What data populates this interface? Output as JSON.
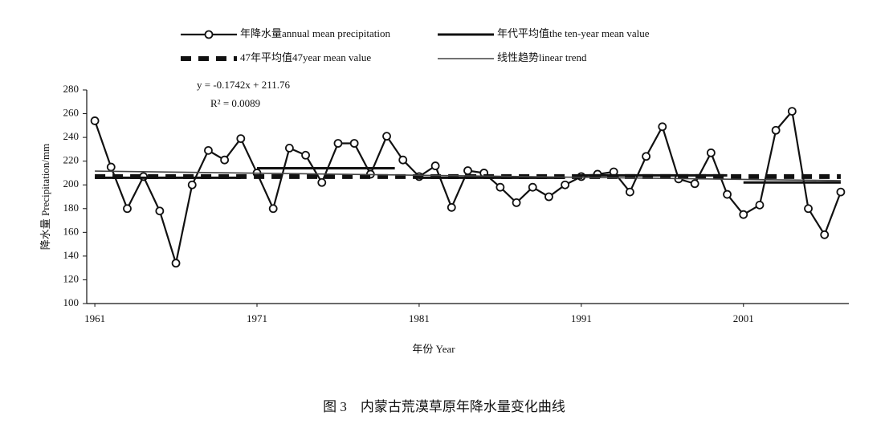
{
  "chart_data": {
    "type": "line",
    "caption": "图 3　内蒙古荒漠草原年降水量变化曲线",
    "x_label": "年份 Year",
    "y_label": "降水量 Precipitation/mm",
    "annotations": [
      "y = -0.1742x + 211.76",
      "R² = 0.0089"
    ],
    "xlim": [
      1960.5,
      2007.5
    ],
    "xticks": [
      1961,
      1971,
      1981,
      1991,
      2001
    ],
    "ylim": [
      100,
      280
    ],
    "yticks": [
      100,
      120,
      140,
      160,
      180,
      200,
      220,
      240,
      260,
      280
    ],
    "grid": false,
    "series": [
      {
        "name": "年降水量annual mean precipitation",
        "color": "#111111",
        "style": "line-circle",
        "x": [
          1961,
          1962,
          1963,
          1964,
          1965,
          1966,
          1967,
          1968,
          1969,
          1970,
          1971,
          1972,
          1973,
          1974,
          1975,
          1976,
          1977,
          1978,
          1979,
          1980,
          1981,
          1982,
          1983,
          1984,
          1985,
          1986,
          1987,
          1988,
          1989,
          1990,
          1991,
          1992,
          1993,
          1994,
          1995,
          1996,
          1997,
          1998,
          1999,
          2000,
          2001,
          2002,
          2003,
          2004,
          2005,
          2006,
          2007
        ],
        "values": [
          254,
          215,
          180,
          207,
          178,
          134,
          200,
          229,
          221,
          239,
          210,
          180,
          231,
          225,
          202,
          235,
          235,
          209,
          241,
          221,
          207,
          216,
          181,
          212,
          210,
          198,
          185,
          198,
          190,
          200,
          207,
          209,
          211,
          194,
          224,
          249,
          205,
          201,
          227,
          192,
          175,
          183,
          246,
          262,
          180,
          158,
          194
        ]
      },
      {
        "name": "年代平均值the  ten-year mean value",
        "color": "#111111",
        "style": "thick",
        "x": [
          1961,
          1970,
          null,
          1971,
          1979.5,
          null,
          1981,
          1990,
          null,
          1991,
          2000,
          null,
          2001,
          2007
        ],
        "values": [
          206,
          206,
          null,
          214,
          214,
          null,
          206,
          206,
          null,
          208,
          208,
          null,
          202,
          202
        ]
      },
      {
        "name": "47年平均值47year mean value",
        "color": "#111111",
        "style": "dashed",
        "x": [
          1961,
          2007
        ],
        "values": [
          207,
          207
        ]
      },
      {
        "name": "线性趋势linear trend",
        "color": "#444444",
        "style": "thin",
        "x": [
          1961,
          2007
        ],
        "values": [
          211.6,
          203.6
        ]
      }
    ]
  }
}
